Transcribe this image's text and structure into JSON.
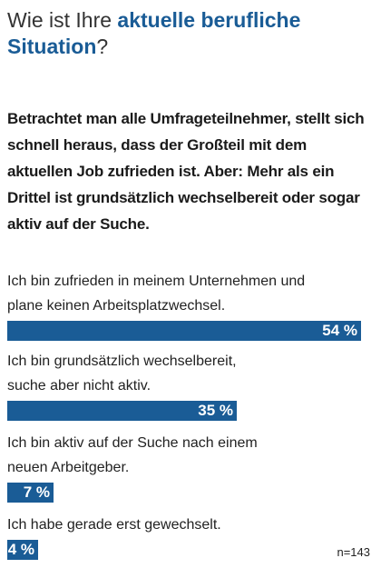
{
  "title": {
    "prefix": "Wie ist Ihre ",
    "highlight1": "aktuelle berufliche",
    "highlight2": "Situation",
    "suffix": "?"
  },
  "intro": "Betrachtet man alle Umfrageteilnehmer, stellt sich schnell heraus, dass der Großteil mit dem aktuellen Job zufrieden ist. Aber: Mehr als ein Drittel ist grundsätzlich wechselbereit oder sogar aktiv auf der Suche.",
  "note": "n=143",
  "colors": {
    "bar": "#1a5c96",
    "accent": "#1a5c96"
  },
  "chart_data": {
    "type": "bar",
    "orientation": "horizontal",
    "categories": [
      [
        "Ich bin zufrieden in meinem Unternehmen und",
        "plane keinen Arbeitsplatzwechsel."
      ],
      [
        "Ich bin grundsätzlich wechselbereit,",
        "suche aber nicht aktiv."
      ],
      [
        "Ich bin aktiv auf der Suche nach einem",
        "neuen Arbeitgeber."
      ],
      [
        "Ich habe gerade erst gewechselt."
      ]
    ],
    "values": [
      54,
      35,
      7,
      4
    ],
    "value_labels": [
      "54 %",
      "35 %",
      "7 %",
      "4 %"
    ],
    "xlim": [
      0,
      54
    ]
  }
}
